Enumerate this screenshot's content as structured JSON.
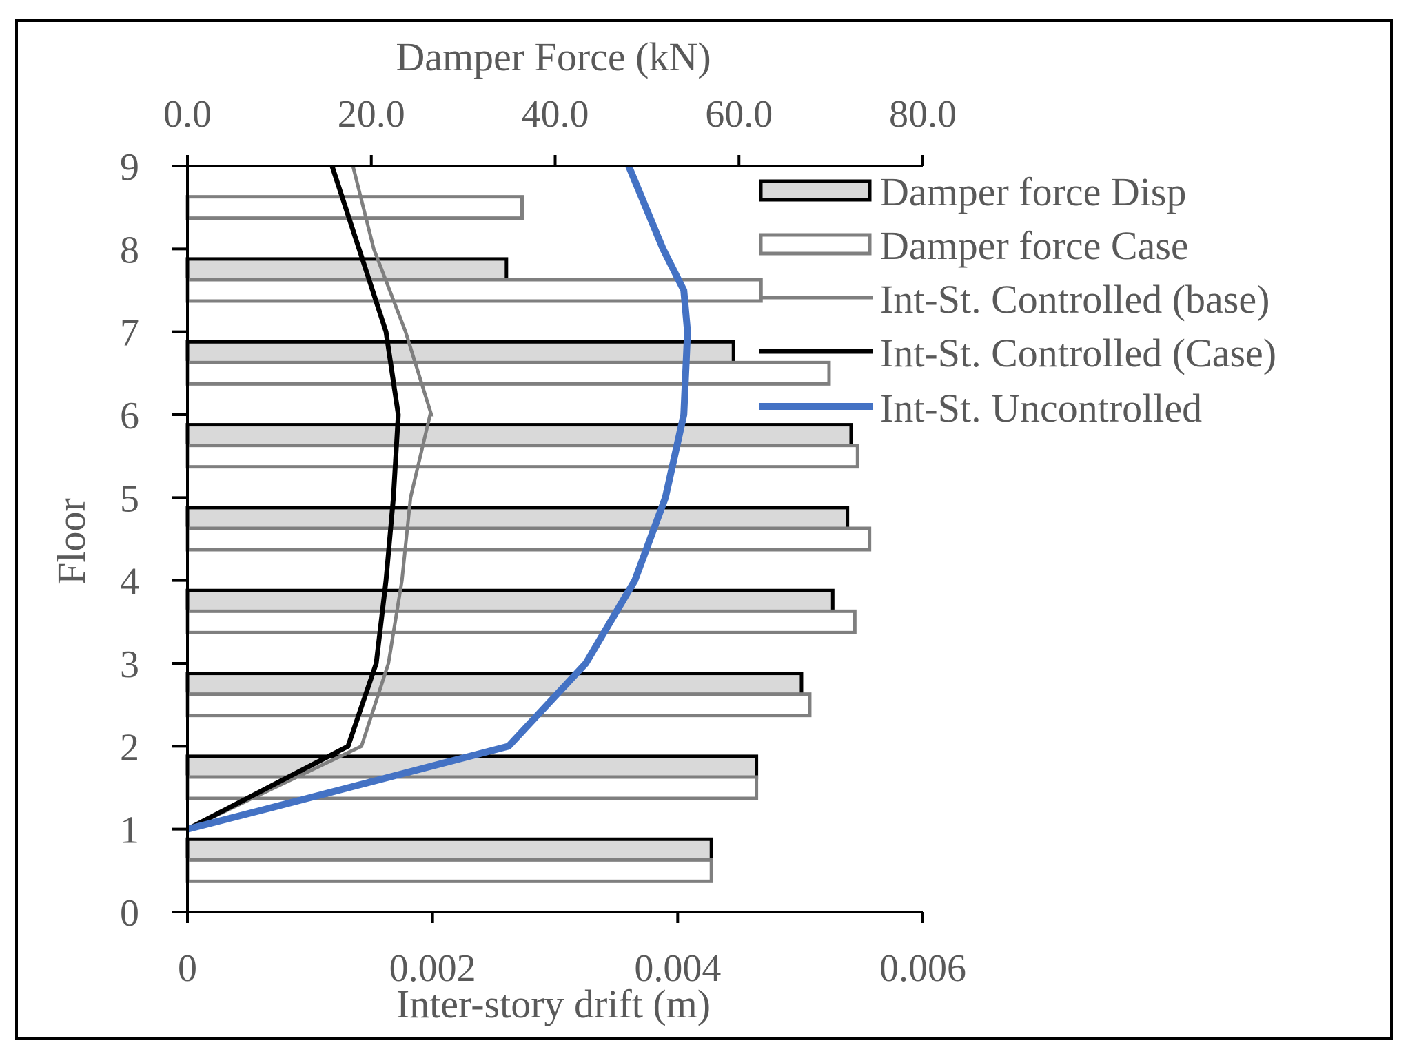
{
  "chart_data": {
    "type": "bar",
    "orientation": "horizontal",
    "top_axis": {
      "label": "Damper Force (kN)",
      "range": [
        0,
        80
      ],
      "ticks": [
        "0.0",
        "20.0",
        "40.0",
        "60.0",
        "80.0"
      ]
    },
    "bottom_axis": {
      "label": "Inter-story drift (m)",
      "range": [
        0,
        0.006
      ],
      "ticks": [
        "0",
        "0.002",
        "0.004",
        "0.006"
      ]
    },
    "y_axis": {
      "label": "Floor",
      "range": [
        0,
        9
      ],
      "ticks": [
        "0",
        "1",
        "2",
        "3",
        "4",
        "5",
        "6",
        "7",
        "8",
        "9"
      ]
    },
    "bar_series": [
      {
        "name": "Damper force Disp",
        "fill": "#d9d9d9",
        "stroke": "#000000",
        "y": [
          0.75,
          1.75,
          2.75,
          3.75,
          4.75,
          5.75,
          6.75,
          7.75
        ],
        "values": [
          57.0,
          61.9,
          66.8,
          70.2,
          71.8,
          72.2,
          59.4,
          34.7
        ]
      },
      {
        "name": "Damper force Case",
        "fill": "#ffffff",
        "stroke": "#7f7f7f",
        "y": [
          0.5,
          1.5,
          2.5,
          3.5,
          4.5,
          5.5,
          6.5,
          7.5,
          8.5
        ],
        "values": [
          57.0,
          61.9,
          67.7,
          72.6,
          74.2,
          72.9,
          69.8,
          62.4,
          36.4
        ]
      }
    ],
    "line_series": [
      {
        "name": "Int-St. Controlled (base)",
        "color": "#7f7f7f",
        "x": [
          0,
          0.00142,
          0.00164,
          0.00175,
          0.00182,
          0.00198,
          0.00199,
          0.00178,
          0.00152,
          0.00135
        ],
        "y": [
          1,
          2,
          3,
          4,
          5,
          6,
          6,
          7,
          8,
          9
        ]
      },
      {
        "name": "Int-St. Controlled (Case)",
        "color": "#000000",
        "x": [
          0,
          0.00131,
          0.00154,
          0.00162,
          0.00168,
          0.00172,
          0.00172,
          0.00162,
          0.0014,
          0.00118
        ],
        "y": [
          1,
          2,
          3,
          4,
          5,
          6,
          6,
          7,
          8,
          9
        ]
      },
      {
        "name": "Int-St. Uncontrolled",
        "color": "#4472c4",
        "x": [
          0,
          0.00066,
          0.00262,
          0.00325,
          0.00365,
          0.0039,
          0.00405,
          0.00408,
          0.00405,
          0.00388,
          0.0036
        ],
        "y": [
          1,
          1.25,
          2,
          3,
          4,
          5,
          6,
          7,
          7.5,
          8,
          9
        ]
      }
    ],
    "legend": {
      "placement": "top-right",
      "entries": [
        "Damper force Disp",
        "Damper force Case",
        "Int-St. Controlled (base)",
        "Int-St. Controlled (Case)",
        "Int-St. Uncontrolled"
      ]
    },
    "grid": false
  }
}
